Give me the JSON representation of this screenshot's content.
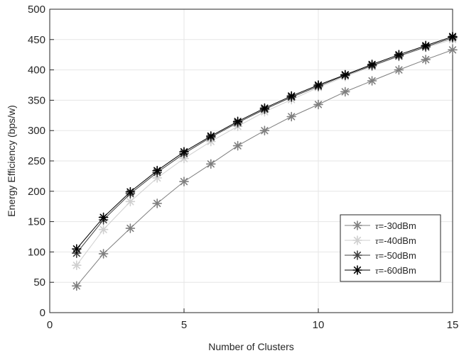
{
  "chart_data": {
    "type": "line",
    "xlabel": "Number of Clusters",
    "ylabel": "Energy Efficiency (bps/w)",
    "xlim": [
      0,
      15
    ],
    "ylim": [
      0,
      500
    ],
    "xticks": [
      0,
      5,
      10,
      15
    ],
    "yticks": [
      0,
      50,
      100,
      150,
      200,
      250,
      300,
      350,
      400,
      450,
      500
    ],
    "grid": true,
    "legend_position": "bottom-right",
    "x": [
      1,
      2,
      3,
      4,
      5,
      6,
      7,
      8,
      9,
      10,
      11,
      12,
      13,
      14,
      15
    ],
    "series": [
      {
        "name": "τ=-30dBm",
        "symbol": "τ",
        "label_rest": "=-30dBm",
        "color": "#7f7f7f",
        "values": [
          44,
          97,
          139,
          180,
          216,
          245,
          275,
          300,
          323,
          343,
          364,
          382,
          400,
          417,
          433
        ]
      },
      {
        "name": "τ=-40dBm",
        "symbol": "τ",
        "label_rest": "=-40dBm",
        "color": "#cfcfcf",
        "values": [
          78,
          137,
          183,
          222,
          254,
          282,
          307,
          331,
          351,
          371,
          389,
          406,
          422,
          437,
          450
        ]
      },
      {
        "name": "τ=-50dBm",
        "symbol": "τ",
        "label_rest": "=-50dBm",
        "color": "#404040",
        "values": [
          98,
          153,
          196,
          231,
          262,
          289,
          313,
          335,
          355,
          373,
          391,
          407,
          423,
          438,
          453
        ]
      },
      {
        "name": "τ=-60dBm",
        "symbol": "τ",
        "label_rest": "=-60dBm",
        "color": "#000000",
        "values": [
          105,
          157,
          199,
          234,
          265,
          291,
          315,
          337,
          357,
          375,
          392,
          409,
          425,
          440,
          455
        ]
      }
    ]
  }
}
